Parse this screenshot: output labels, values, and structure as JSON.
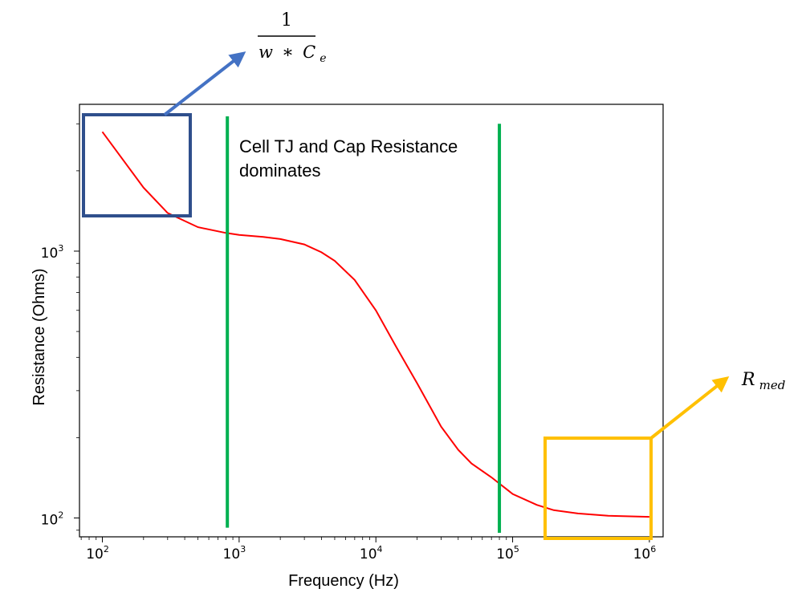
{
  "chart_data": {
    "type": "line",
    "xlabel": "Frequency (Hz)",
    "ylabel": "Resistance (Ohms)",
    "x_scale": "log",
    "y_scale": "log",
    "xlim": [
      68,
      1260000
    ],
    "ylim": [
      85,
      3550
    ],
    "x_ticks": [
      {
        "value": 100,
        "base": "10",
        "exp": "2"
      },
      {
        "value": 1000,
        "base": "10",
        "exp": "3"
      },
      {
        "value": 10000,
        "base": "10",
        "exp": "4"
      },
      {
        "value": 100000,
        "base": "10",
        "exp": "5"
      },
      {
        "value": 1000000,
        "base": "10",
        "exp": "6"
      }
    ],
    "y_ticks": [
      {
        "value": 100,
        "base": "10",
        "exp": "2"
      },
      {
        "value": 1000,
        "base": "10",
        "exp": "3"
      }
    ],
    "grid": false,
    "series": [
      {
        "color": "#ff0000",
        "x": [
          100,
          200,
          300,
          500,
          800,
          1000,
          1500,
          2000,
          3000,
          4000,
          5000,
          7000,
          10000,
          14000,
          20000,
          30000,
          40000,
          50000,
          70000,
          100000,
          150000,
          200000,
          300000,
          500000,
          1000000
        ],
        "y": [
          2800,
          1730,
          1390,
          1230,
          1170,
          1150,
          1130,
          1110,
          1060,
          990,
          920,
          780,
          600,
          440,
          320,
          220,
          180,
          160,
          142,
          123,
          112,
          107,
          104,
          102,
          101
        ]
      }
    ],
    "vertical_lines": [
      {
        "x": 820,
        "y_from": 92,
        "y_to": 3200,
        "color": "#00b050"
      },
      {
        "x": 80000,
        "y_from": 88,
        "y_to": 3000,
        "color": "#00b050"
      }
    ],
    "annotations": {
      "region_text_line1": "Cell TJ and Cap Resistance",
      "region_text_line2": "dominates",
      "formula_numerator": "1",
      "formula_w": "w",
      "formula_op": "∗",
      "formula_c": "C",
      "formula_c_sub": "e",
      "r_main": "R",
      "r_sub": "med"
    },
    "colors": {
      "blue_box": "#2f4f8c",
      "blue_arrow": "#4472c4",
      "yellow": "#ffc000",
      "green": "#00b050"
    }
  }
}
